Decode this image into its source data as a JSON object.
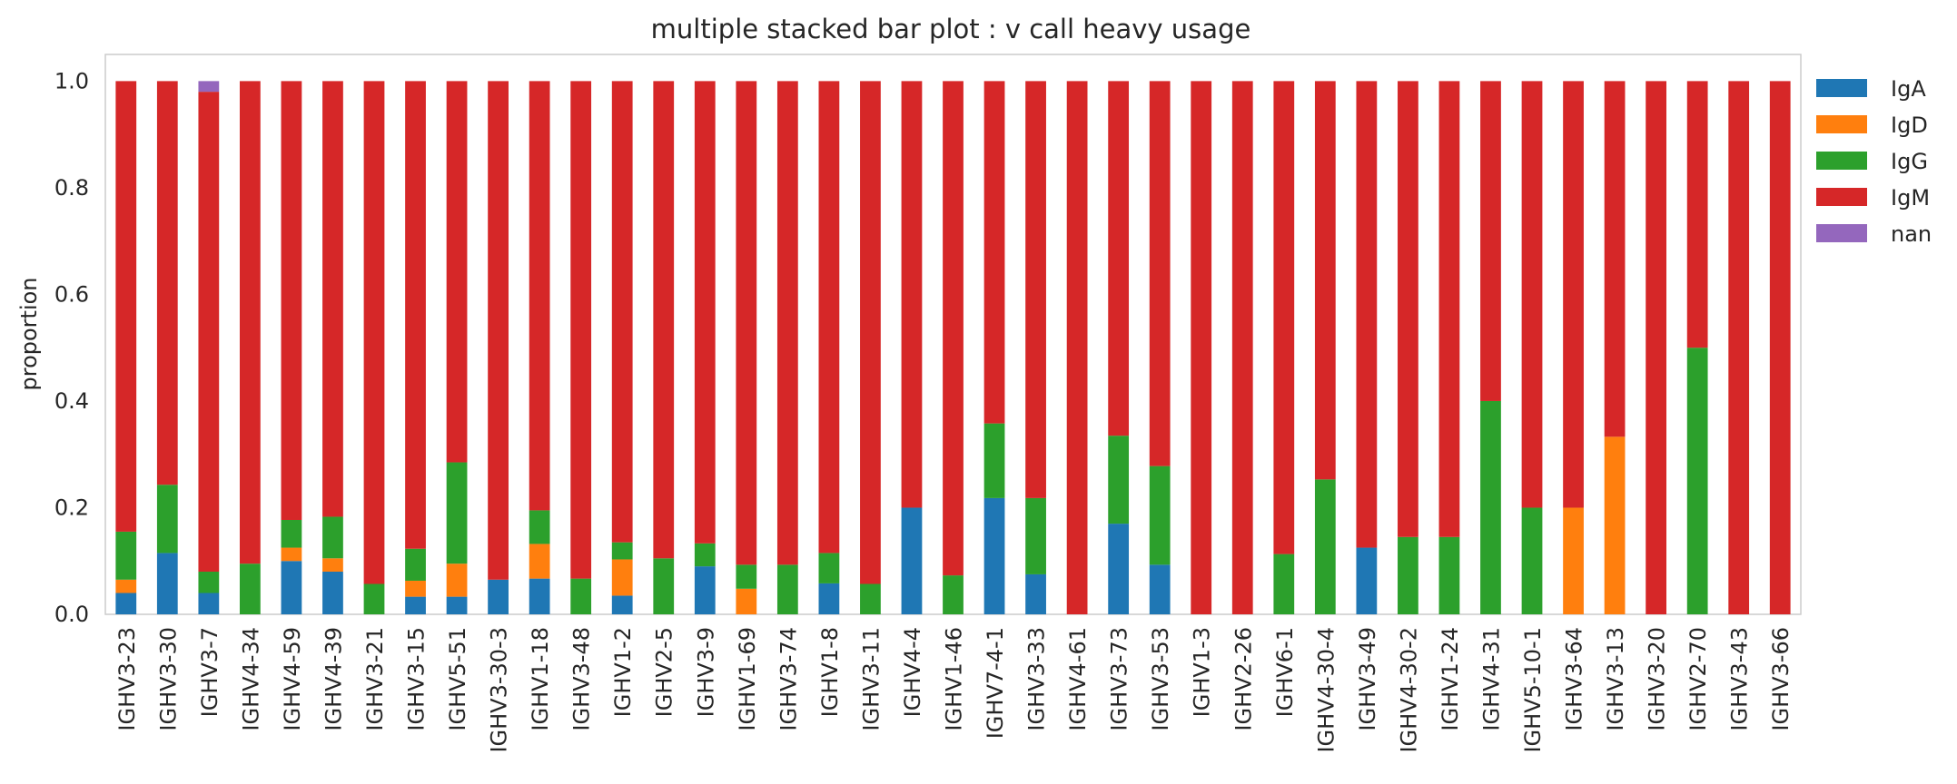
{
  "chart_data": {
    "type": "bar",
    "stacked": true,
    "title": "multiple stacked bar plot : v call heavy usage",
    "xlabel": "",
    "ylabel": "proportion",
    "ylim": [
      0,
      1.05
    ],
    "yticks": [
      "0.0",
      "0.2",
      "0.4",
      "0.6",
      "0.8",
      "1.0"
    ],
    "grid": false,
    "legend_position": "outside-right",
    "categories": [
      "IGHV3-23",
      "IGHV3-30",
      "IGHV3-7",
      "IGHV4-34",
      "IGHV4-59",
      "IGHV4-39",
      "IGHV3-21",
      "IGHV3-15",
      "IGHV5-51",
      "IGHV3-30-3",
      "IGHV1-18",
      "IGHV3-48",
      "IGHV1-2",
      "IGHV2-5",
      "IGHV3-9",
      "IGHV1-69",
      "IGHV3-74",
      "IGHV1-8",
      "IGHV3-11",
      "IGHV4-4",
      "IGHV1-46",
      "IGHV7-4-1",
      "IGHV3-33",
      "IGHV4-61",
      "IGHV3-73",
      "IGHV3-53",
      "IGHV1-3",
      "IGHV2-26",
      "IGHV6-1",
      "IGHV4-30-4",
      "IGHV3-49",
      "IGHV4-30-2",
      "IGHV1-24",
      "IGHV4-31",
      "IGHV5-10-1",
      "IGHV3-64",
      "IGHV3-13",
      "IGHV3-20",
      "IGHV2-70",
      "IGHV3-43",
      "IGHV3-66"
    ],
    "series": [
      {
        "name": "IgA",
        "color": "#1f77b4",
        "values": [
          0.04,
          0.115,
          0.04,
          0,
          0.1,
          0.08,
          0,
          0.033,
          0.033,
          0.065,
          0.067,
          0,
          0.035,
          0,
          0.09,
          0,
          0,
          0.058,
          0,
          0.2,
          0,
          0.218,
          0.075,
          0,
          0.17,
          0.093,
          0,
          0,
          0,
          0,
          0.125,
          0,
          0,
          0,
          0,
          0,
          0,
          0,
          0,
          0,
          0
        ]
      },
      {
        "name": "IgD",
        "color": "#ff7f0e",
        "values": [
          0.025,
          0,
          0,
          0,
          0.025,
          0.025,
          0,
          0.03,
          0.062,
          0,
          0.065,
          0,
          0.068,
          0,
          0,
          0.048,
          0,
          0,
          0,
          0,
          0,
          0,
          0,
          0,
          0,
          0,
          0,
          0,
          0,
          0,
          0,
          0,
          0,
          0,
          0,
          0.2,
          0.333,
          0,
          0,
          0,
          0
        ]
      },
      {
        "name": "IgG",
        "color": "#2ca02c",
        "values": [
          0.09,
          0.128,
          0.04,
          0.095,
          0.052,
          0.078,
          0.057,
          0.06,
          0.19,
          0,
          0.063,
          0.067,
          0.032,
          0.105,
          0.043,
          0.045,
          0.093,
          0.057,
          0.057,
          0,
          0.073,
          0.14,
          0.143,
          0,
          0.165,
          0.185,
          0,
          0,
          0.113,
          0.253,
          0,
          0.145,
          0.145,
          0.4,
          0.2,
          0,
          0,
          0,
          0.5,
          0,
          0
        ]
      },
      {
        "name": "IgM",
        "color": "#d62728",
        "values": [
          0.845,
          0.757,
          0.9,
          0.905,
          0.823,
          0.817,
          0.943,
          0.877,
          0.715,
          0.935,
          0.805,
          0.933,
          0.865,
          0.895,
          0.867,
          0.907,
          0.907,
          0.885,
          0.943,
          0.8,
          0.927,
          0.642,
          0.782,
          1.0,
          0.665,
          0.722,
          1.0,
          1.0,
          0.887,
          0.747,
          0.875,
          0.855,
          0.855,
          0.6,
          0.8,
          0.8,
          0.667,
          1.0,
          0.5,
          1.0,
          1.0
        ]
      },
      {
        "name": "nan",
        "color": "#9467bd",
        "values": [
          0,
          0,
          0.02,
          0,
          0,
          0,
          0,
          0,
          0,
          0,
          0,
          0,
          0,
          0,
          0,
          0,
          0,
          0,
          0,
          0,
          0,
          0,
          0,
          0,
          0,
          0,
          0,
          0,
          0,
          0,
          0,
          0,
          0,
          0,
          0,
          0,
          0,
          0,
          0,
          0,
          0
        ]
      }
    ]
  }
}
